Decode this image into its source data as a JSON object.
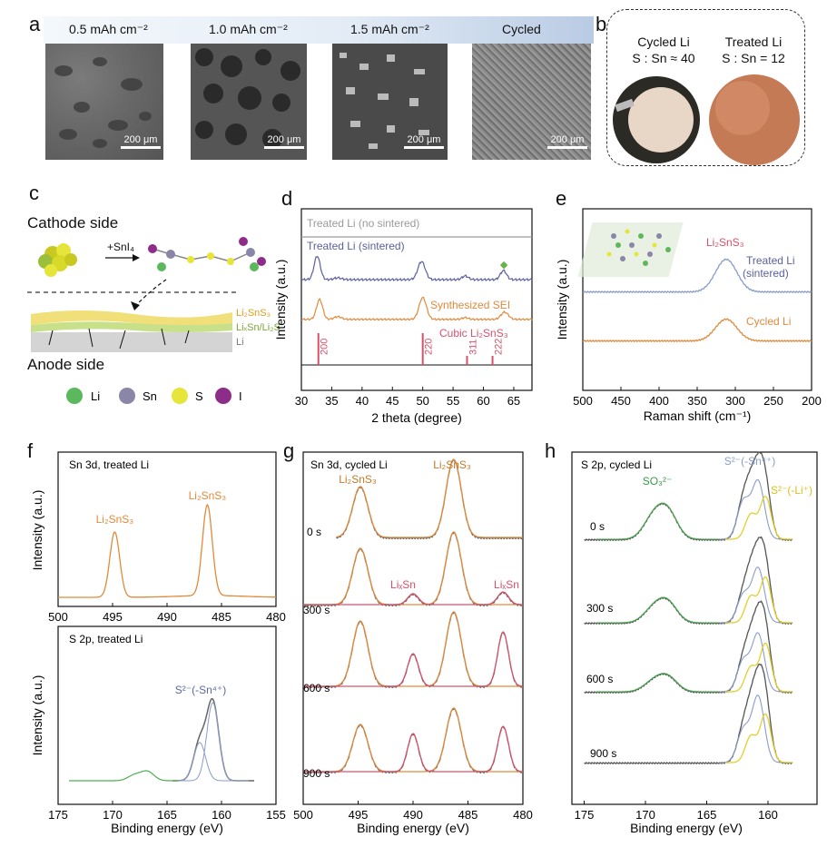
{
  "panels": {
    "a": "a",
    "b": "b",
    "c": "c",
    "d": "d",
    "e": "e",
    "f": "f",
    "g": "g",
    "h": "h"
  },
  "panel_a": {
    "labels": [
      "0.5 mAh cm⁻²",
      "1.0 mAh cm⁻²",
      "1.5 mAh cm⁻²",
      "Cycled"
    ],
    "scalebar": "200 μm"
  },
  "panel_b": {
    "left_title": "Cycled Li",
    "left_ratio": "S : Sn ≈ 40",
    "right_title": "Treated Li",
    "right_ratio": "S : Sn = 12"
  },
  "panel_c": {
    "cathode": "Cathode side",
    "anode": "Anode side",
    "reagent": "+SnI₄",
    "layer1": "Li₂SnS₃",
    "layer2": "LiₓSn/Li₂S",
    "layer3": "Li",
    "legend": [
      "Li",
      "Sn",
      "S",
      "I"
    ],
    "colors": {
      "Li": "#5cb85c",
      "Sn": "#8a86a8",
      "S": "#e6e63a",
      "I": "#8e2c8a"
    }
  },
  "chart_data": [
    {
      "id": "d",
      "type": "line",
      "xlabel": "2 theta (degree)",
      "ylabel": "Intensity (a.u.)",
      "xlim": [
        30,
        68
      ],
      "xticks": [
        30,
        35,
        40,
        45,
        50,
        55,
        60,
        65
      ],
      "series": [
        {
          "name": "Treated Li (no sintered)",
          "color": "#9a9a9a"
        },
        {
          "name": "Treated Li (sintered)",
          "color": "#5b5f9e"
        },
        {
          "name": "Synthesized SEI",
          "color": "#e08a3c"
        }
      ],
      "reference": {
        "name": "Cubic Li₂SnS₃",
        "color": "#d9506a",
        "peaks": [
          {
            "hkl": "200",
            "x": 32.8
          },
          {
            "hkl": "220",
            "x": 50.0
          },
          {
            "hkl": "311",
            "x": 57.3
          },
          {
            "hkl": "222",
            "x": 61.5
          }
        ]
      },
      "marker": {
        "symbol": "◆",
        "x": 63.5,
        "color": "#6ab04c"
      }
    },
    {
      "id": "e",
      "type": "line",
      "xlabel": "Raman shift (cm⁻¹)",
      "ylabel": "Intensity (a.u.)",
      "xlim": [
        500,
        200
      ],
      "xticks": [
        500,
        450,
        400,
        350,
        300,
        250,
        200
      ],
      "peak_label": "Li₂SnS₃",
      "peak_x": 312,
      "series": [
        {
          "name": "Treated Li (sintered)",
          "label_lines": [
            "Treated Li",
            "(sintered)"
          ],
          "color": "#8a9cc8"
        },
        {
          "name": "Cycled Li",
          "color": "#e08a3c"
        }
      ]
    },
    {
      "id": "f_top",
      "type": "line",
      "title": "Sn 3d, treated Li",
      "ylabel": "Intensity (a.u.)",
      "xlim": [
        500,
        480
      ],
      "xticks": [
        500,
        495,
        490,
        485,
        480
      ],
      "peaks": [
        {
          "label": "Li₂SnS₃",
          "x": 494.8
        },
        {
          "label": "Li₂SnS₃",
          "x": 486.3
        }
      ],
      "color": "#e08a3c"
    },
    {
      "id": "f_bottom",
      "type": "line",
      "title": "S 2p, treated Li",
      "xlabel": "Binding energy (eV)",
      "ylabel": "Intensity (a.u.)",
      "xlim": [
        175,
        155
      ],
      "xticks": [
        175,
        170,
        165,
        160,
        155
      ],
      "peak_label": "S²⁻(-Sn⁴⁺)",
      "color": "#8a9cc8"
    },
    {
      "id": "g",
      "type": "line",
      "title": "Sn 3d, cycled Li",
      "xlabel": "Binding energy (eV)",
      "xlim": [
        500,
        480
      ],
      "xticks": [
        500,
        495,
        490,
        485,
        480
      ],
      "times": [
        "0 s",
        "300 s",
        "600 s",
        "900 s"
      ],
      "labels": {
        "li2sns3": "Li₂SnS₃",
        "lixsn": "LiₓSn"
      },
      "peaks": {
        "li2sns3": [
          494.8,
          486.3
        ],
        "lixsn": [
          490.0,
          481.8
        ]
      }
    },
    {
      "id": "h",
      "type": "line",
      "title": "S 2p, cycled Li",
      "xlabel": "Binding energy (eV)",
      "xlim": [
        176,
        156
      ],
      "xticks": [
        175,
        170,
        165,
        160
      ],
      "times": [
        "0 s",
        "300 s",
        "600 s",
        "900 s"
      ],
      "labels": {
        "so3": "SO₃²⁻",
        "sn": "S²⁻(-Sn⁴⁺)",
        "li": "S²⁻(-Li⁺)"
      }
    }
  ]
}
